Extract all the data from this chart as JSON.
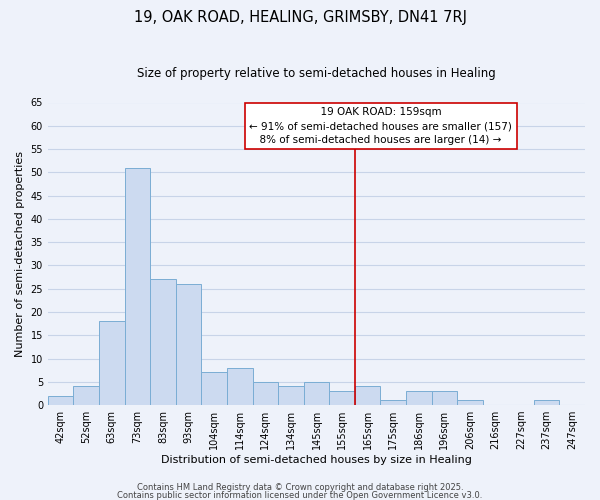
{
  "title": "19, OAK ROAD, HEALING, GRIMSBY, DN41 7RJ",
  "subtitle": "Size of property relative to semi-detached houses in Healing",
  "xlabel": "Distribution of semi-detached houses by size in Healing",
  "ylabel": "Number of semi-detached properties",
  "bin_labels": [
    "42sqm",
    "52sqm",
    "63sqm",
    "73sqm",
    "83sqm",
    "93sqm",
    "104sqm",
    "114sqm",
    "124sqm",
    "134sqm",
    "145sqm",
    "155sqm",
    "165sqm",
    "175sqm",
    "186sqm",
    "196sqm",
    "206sqm",
    "216sqm",
    "227sqm",
    "237sqm",
    "247sqm"
  ],
  "bar_heights": [
    2,
    4,
    18,
    51,
    27,
    26,
    7,
    8,
    5,
    4,
    5,
    3,
    4,
    1,
    3,
    3,
    1,
    0,
    0,
    1,
    0
  ],
  "bar_color": "#ccdaf0",
  "bar_edge_color": "#7aadd4",
  "ylim": [
    0,
    65
  ],
  "yticks": [
    0,
    5,
    10,
    15,
    20,
    25,
    30,
    35,
    40,
    45,
    50,
    55,
    60,
    65
  ],
  "vline_x_index": 11.5,
  "vline_color": "#cc0000",
  "annotation_title": "19 OAK ROAD: 159sqm",
  "annotation_line1": "← 91% of semi-detached houses are smaller (157)",
  "annotation_line2": "8% of semi-detached houses are larger (14) →",
  "footer1": "Contains HM Land Registry data © Crown copyright and database right 2025.",
  "footer2": "Contains public sector information licensed under the Open Government Licence v3.0.",
  "bg_color": "#eef2fa",
  "grid_color": "#c8d4e8",
  "title_fontsize": 10.5,
  "subtitle_fontsize": 8.5,
  "axis_label_fontsize": 8,
  "tick_fontsize": 7,
  "annotation_fontsize": 7.5,
  "footer_fontsize": 6
}
